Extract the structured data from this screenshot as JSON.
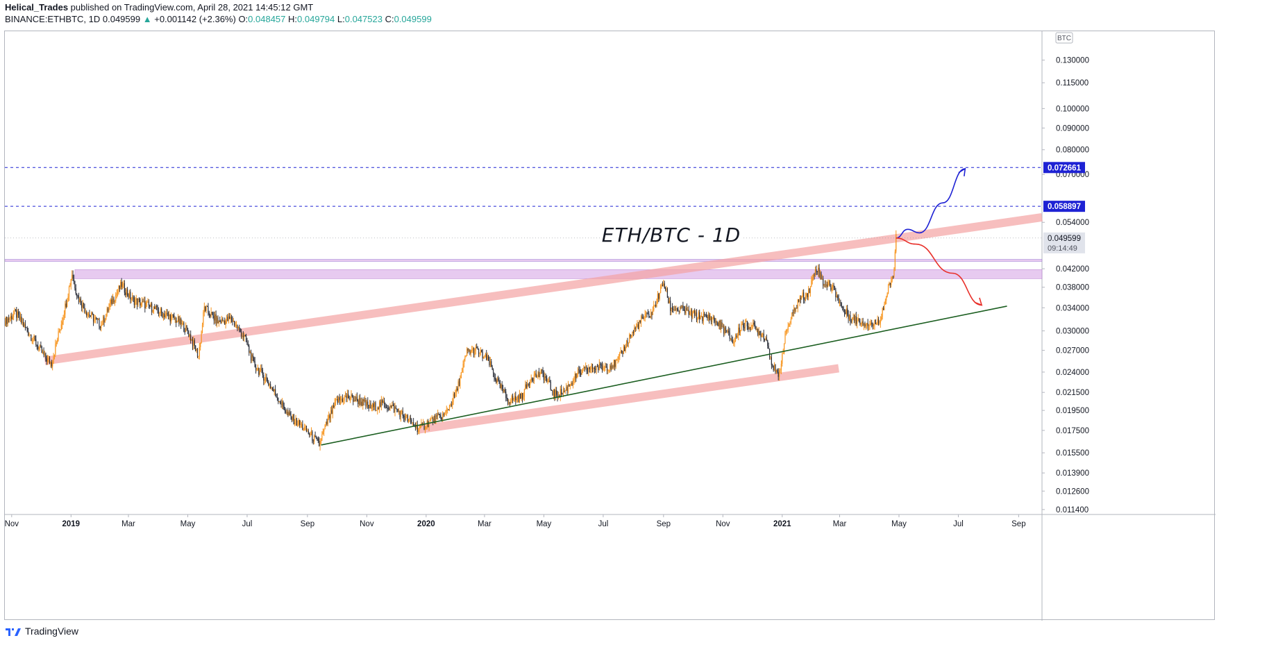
{
  "header": {
    "author": "Helical_Trades",
    "published_text": " published on TradingView.com, April 28, 2021 14:45:12 GMT",
    "symbol": "BINANCE:ETHBTC, 1D",
    "price": "0.049599",
    "change_arrow": "▲",
    "change": "+0.001142 (+2.36%)",
    "o_label": "O:",
    "o_value": "0.048457",
    "h_label": "H:",
    "h_value": "0.049794",
    "l_label": "L:",
    "l_value": "0.047523",
    "c_label": "C:",
    "c_value": "0.049599"
  },
  "footer": {
    "brand": "TradingView"
  },
  "colors": {
    "up": "#f7931a",
    "down": "#2a2e39",
    "axis_text": "#131722",
    "dashed": "#1e22d4",
    "trendline": "#1b5e20",
    "channel_band": "#f4a3a3",
    "resistance_zone": "#d7a6e6",
    "blue_path": "#1e22d4",
    "red_path": "#e8302a",
    "label_bg": "#1e22d4"
  },
  "chart_data": {
    "type": "candlestick",
    "title": "ETH/BTC - 1D",
    "scale": "log",
    "currency_label": "BTC",
    "x_ticks": [
      "Nov",
      "2019",
      "Mar",
      "May",
      "Jul",
      "Sep",
      "Nov",
      "2020",
      "Mar",
      "May",
      "Jul",
      "Sep",
      "Nov",
      "2021",
      "Mar",
      "May",
      "Jul",
      "Sep"
    ],
    "x_range": [
      "2018-10-25",
      "2021-09-25"
    ],
    "y_ticks": [
      0.0114,
      0.0126,
      0.0139,
      0.0155,
      0.0175,
      0.0195,
      0.0215,
      0.024,
      0.027,
      0.03,
      0.034,
      0.038,
      0.042,
      0.054,
      0.07,
      0.08,
      0.09,
      0.1,
      0.115,
      0.13
    ],
    "y_range": [
      0.0111,
      0.152
    ],
    "price_series": [
      [
        "2018-10-25",
        0.0316
      ],
      [
        "2018-11-05",
        0.033
      ],
      [
        "2018-11-15",
        0.0305
      ],
      [
        "2018-11-25",
        0.0283
      ],
      [
        "2018-12-05",
        0.026
      ],
      [
        "2018-12-12",
        0.0252
      ],
      [
        "2018-12-20",
        0.03
      ],
      [
        "2018-12-27",
        0.035
      ],
      [
        "2019-01-02",
        0.041
      ],
      [
        "2019-01-08",
        0.036
      ],
      [
        "2019-01-18",
        0.033
      ],
      [
        "2019-02-01",
        0.031
      ],
      [
        "2019-02-12",
        0.0352
      ],
      [
        "2019-02-22",
        0.0385
      ],
      [
        "2019-03-05",
        0.0355
      ],
      [
        "2019-03-20",
        0.0345
      ],
      [
        "2019-04-05",
        0.033
      ],
      [
        "2019-04-20",
        0.0318
      ],
      [
        "2019-05-01",
        0.03
      ],
      [
        "2019-05-12",
        0.0262
      ],
      [
        "2019-05-18",
        0.034
      ],
      [
        "2019-06-01",
        0.0315
      ],
      [
        "2019-06-15",
        0.032
      ],
      [
        "2019-06-28",
        0.029
      ],
      [
        "2019-07-08",
        0.025
      ],
      [
        "2019-07-20",
        0.0232
      ],
      [
        "2019-08-01",
        0.021
      ],
      [
        "2019-08-12",
        0.019
      ],
      [
        "2019-08-25",
        0.018
      ],
      [
        "2019-09-05",
        0.017
      ],
      [
        "2019-09-13",
        0.0162
      ],
      [
        "2019-09-20",
        0.018
      ],
      [
        "2019-10-01",
        0.0205
      ],
      [
        "2019-10-12",
        0.021
      ],
      [
        "2019-10-25",
        0.0205
      ],
      [
        "2019-11-05",
        0.0198
      ],
      [
        "2019-11-18",
        0.0202
      ],
      [
        "2019-12-01",
        0.0196
      ],
      [
        "2019-12-15",
        0.0184
      ],
      [
        "2019-12-25",
        0.0176
      ],
      [
        "2020-01-05",
        0.0184
      ],
      [
        "2020-01-20",
        0.019
      ],
      [
        "2020-02-01",
        0.0215
      ],
      [
        "2020-02-12",
        0.0268
      ],
      [
        "2020-02-22",
        0.027
      ],
      [
        "2020-03-05",
        0.0255
      ],
      [
        "2020-03-13",
        0.023
      ],
      [
        "2020-03-25",
        0.0206
      ],
      [
        "2020-04-08",
        0.021
      ],
      [
        "2020-04-18",
        0.0234
      ],
      [
        "2020-04-30",
        0.0238
      ],
      [
        "2020-05-12",
        0.0212
      ],
      [
        "2020-05-22",
        0.0216
      ],
      [
        "2020-06-05",
        0.0238
      ],
      [
        "2020-06-20",
        0.0246
      ],
      [
        "2020-07-01",
        0.0246
      ],
      [
        "2020-07-15",
        0.0252
      ],
      [
        "2020-07-28",
        0.029
      ],
      [
        "2020-08-10",
        0.032
      ],
      [
        "2020-08-20",
        0.033
      ],
      [
        "2020-09-01",
        0.039
      ],
      [
        "2020-09-08",
        0.034
      ],
      [
        "2020-09-20",
        0.0336
      ],
      [
        "2020-10-05",
        0.0325
      ],
      [
        "2020-10-20",
        0.0322
      ],
      [
        "2020-11-01",
        0.0305
      ],
      [
        "2020-11-12",
        0.0282
      ],
      [
        "2020-11-20",
        0.031
      ],
      [
        "2020-12-01",
        0.0308
      ],
      [
        "2020-12-15",
        0.029
      ],
      [
        "2020-12-22",
        0.025
      ],
      [
        "2020-12-28",
        0.0232
      ],
      [
        "2021-01-05",
        0.03
      ],
      [
        "2021-01-18",
        0.0355
      ],
      [
        "2021-01-28",
        0.037
      ],
      [
        "2021-02-05",
        0.0425
      ],
      [
        "2021-02-12",
        0.039
      ],
      [
        "2021-02-22",
        0.038
      ],
      [
        "2021-03-05",
        0.0335
      ],
      [
        "2021-03-15",
        0.032
      ],
      [
        "2021-03-25",
        0.0315
      ],
      [
        "2021-04-05",
        0.031
      ],
      [
        "2021-04-12",
        0.0322
      ],
      [
        "2021-04-18",
        0.0362
      ],
      [
        "2021-04-22",
        0.0388
      ],
      [
        "2021-04-25",
        0.04
      ],
      [
        "2021-04-28",
        0.049599
      ]
    ],
    "horizontal_levels": [
      {
        "value": 0.072661,
        "label": "0.072661"
      },
      {
        "value": 0.058897,
        "label": "0.058897"
      }
    ],
    "last_price": {
      "value": 0.049599,
      "label": "0.049599",
      "countdown": "09:14:49"
    },
    "resistance_zone": {
      "from": 0.0398,
      "to": 0.0418
    },
    "thin_zone": {
      "from": 0.0437,
      "to": 0.0442
    },
    "trendline": {
      "from": [
        "2019-09-15",
        0.01617
      ],
      "to": [
        "2021-08-20",
        0.0343
      ]
    },
    "channel_upper": {
      "from": [
        "2018-12-05",
        0.0255
      ],
      "to": [
        "2021-09-25",
        0.0555
      ]
    },
    "channel_lower": {
      "from": [
        "2019-12-25",
        0.0176
      ],
      "to": [
        "2021-02-28",
        0.0245
      ]
    },
    "projection_bullish": [
      [
        "2021-04-28",
        0.0496
      ],
      [
        "2021-05-10",
        0.052
      ],
      [
        "2021-05-22",
        0.051
      ],
      [
        "2021-06-15",
        0.06
      ],
      [
        "2021-07-08",
        0.0722
      ]
    ],
    "projection_bearish": [
      [
        "2021-04-28",
        0.0496
      ],
      [
        "2021-05-18",
        0.048
      ],
      [
        "2021-06-25",
        0.041
      ],
      [
        "2021-07-25",
        0.0345
      ]
    ]
  }
}
